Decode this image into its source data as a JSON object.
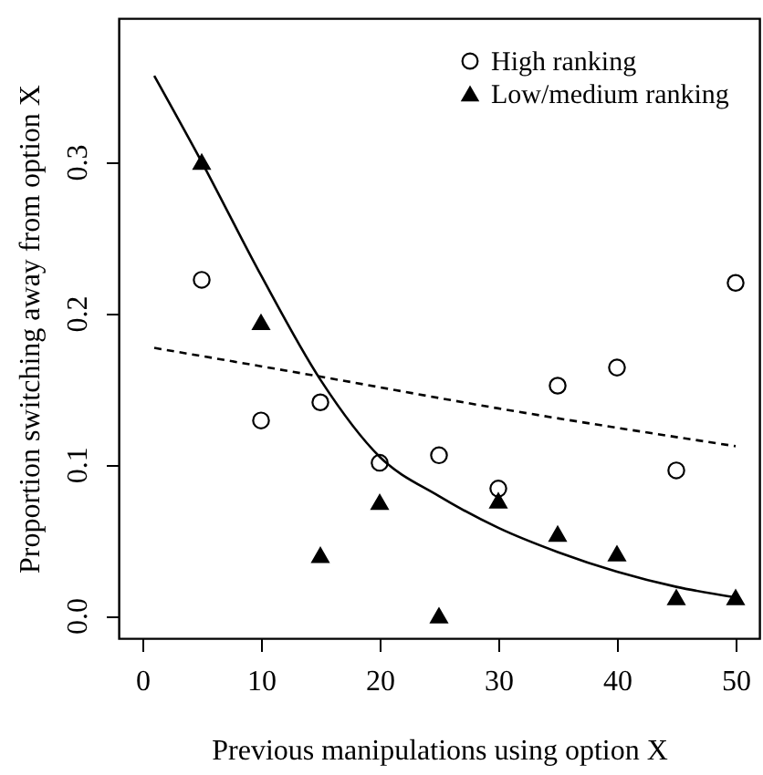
{
  "chart_data": {
    "type": "scatter",
    "xlabel": "Previous manipulations using option X",
    "ylabel": "Proportion switching away from option X",
    "x": [
      5,
      10,
      15,
      20,
      25,
      30,
      35,
      40,
      45,
      50
    ],
    "series": [
      {
        "name": "High ranking",
        "color": "#000000",
        "marker": "circle",
        "values": [
          0.222,
          0.129,
          0.141,
          0.101,
          0.106,
          0.084,
          0.152,
          0.164,
          0.096,
          0.22
        ]
      },
      {
        "name": "Low/medium ranking",
        "color": "#000000",
        "marker": "triangle",
        "values": [
          0.3,
          0.194,
          0.04,
          0.075,
          0.0,
          0.076,
          0.054,
          0.041,
          0.012,
          0.012
        ]
      },
      {
        "type": "line",
        "line_style": "dashed",
        "color": "#000000",
        "x": [
          1,
          15,
          30,
          50
        ],
        "values": [
          0.177,
          0.158,
          0.137,
          0.112
        ]
      },
      {
        "type": "line",
        "line_style": "solid",
        "color": "#000000",
        "x": [
          1,
          5,
          10,
          15,
          20,
          25,
          30,
          35,
          40,
          45,
          50
        ],
        "values": [
          0.357,
          0.3,
          0.225,
          0.156,
          0.105,
          0.079,
          0.058,
          0.042,
          0.029,
          0.019,
          0.012
        ]
      }
    ],
    "xlim": [
      -2,
      52
    ],
    "ylim": [
      -0.015,
      0.395
    ],
    "xticks": [
      0,
      10,
      20,
      30,
      40,
      50
    ],
    "yticks": [
      {
        "value": 0,
        "label": "0.0"
      },
      0.1,
      0.2,
      0.3
    ],
    "grid": false,
    "legend": "top right"
  }
}
